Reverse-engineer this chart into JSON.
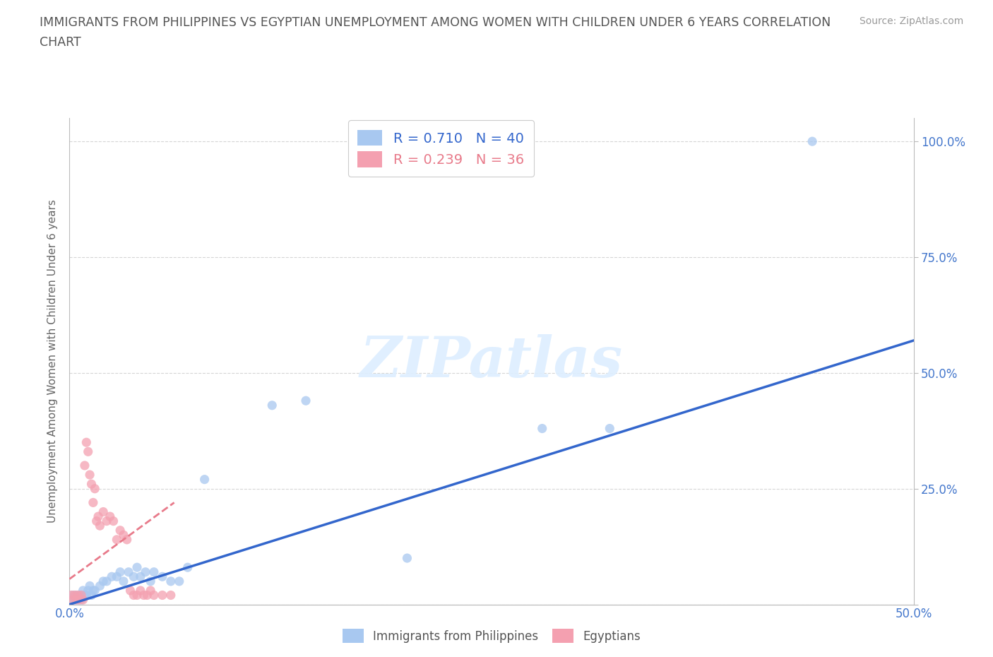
{
  "title_line1": "IMMIGRANTS FROM PHILIPPINES VS EGYPTIAN UNEMPLOYMENT AMONG WOMEN WITH CHILDREN UNDER 6 YEARS CORRELATION",
  "title_line2": "CHART",
  "source": "Source: ZipAtlas.com",
  "ylabel": "Unemployment Among Women with Children Under 6 years",
  "xlim": [
    0.0,
    0.5
  ],
  "ylim": [
    0.0,
    1.05
  ],
  "xticks": [
    0.0,
    0.1,
    0.2,
    0.3,
    0.4,
    0.5
  ],
  "xticklabels": [
    "0.0%",
    "",
    "",
    "",
    "",
    "50.0%"
  ],
  "ytick_positions": [
    0.0,
    0.25,
    0.5,
    0.75,
    1.0
  ],
  "ytick_labels_left": [
    "",
    "",
    "",
    "",
    ""
  ],
  "ytick_labels_right": [
    "",
    "25.0%",
    "50.0%",
    "75.0%",
    "100.0%"
  ],
  "blue_color": "#a8c8f0",
  "pink_color": "#f4a0b0",
  "blue_line_color": "#3366cc",
  "pink_line_color": "#e87a8a",
  "R_blue": 0.71,
  "N_blue": 40,
  "R_pink": 0.239,
  "N_pink": 36,
  "watermark": "ZIPatlas",
  "legend_label_blue": "Immigrants from Philippines",
  "legend_label_pink": "Egyptians",
  "background_color": "#ffffff",
  "grid_color": "#cccccc",
  "title_color": "#555555",
  "axis_tick_color": "#4477cc",
  "blue_scatter": [
    [
      0.001,
      0.01
    ],
    [
      0.002,
      0.02
    ],
    [
      0.003,
      0.01
    ],
    [
      0.004,
      0.02
    ],
    [
      0.005,
      0.01
    ],
    [
      0.006,
      0.02
    ],
    [
      0.007,
      0.01
    ],
    [
      0.008,
      0.03
    ],
    [
      0.009,
      0.02
    ],
    [
      0.01,
      0.02
    ],
    [
      0.011,
      0.03
    ],
    [
      0.012,
      0.04
    ],
    [
      0.013,
      0.02
    ],
    [
      0.014,
      0.03
    ],
    [
      0.015,
      0.03
    ],
    [
      0.018,
      0.04
    ],
    [
      0.02,
      0.05
    ],
    [
      0.022,
      0.05
    ],
    [
      0.025,
      0.06
    ],
    [
      0.028,
      0.06
    ],
    [
      0.03,
      0.07
    ],
    [
      0.032,
      0.05
    ],
    [
      0.035,
      0.07
    ],
    [
      0.038,
      0.06
    ],
    [
      0.04,
      0.08
    ],
    [
      0.042,
      0.06
    ],
    [
      0.045,
      0.07
    ],
    [
      0.048,
      0.05
    ],
    [
      0.05,
      0.07
    ],
    [
      0.055,
      0.06
    ],
    [
      0.06,
      0.05
    ],
    [
      0.065,
      0.05
    ],
    [
      0.07,
      0.08
    ],
    [
      0.08,
      0.27
    ],
    [
      0.12,
      0.43
    ],
    [
      0.14,
      0.44
    ],
    [
      0.2,
      0.1
    ],
    [
      0.28,
      0.38
    ],
    [
      0.32,
      0.38
    ],
    [
      0.44,
      1.0
    ]
  ],
  "pink_scatter": [
    [
      0.001,
      0.02
    ],
    [
      0.002,
      0.01
    ],
    [
      0.003,
      0.02
    ],
    [
      0.004,
      0.01
    ],
    [
      0.005,
      0.02
    ],
    [
      0.006,
      0.01
    ],
    [
      0.007,
      0.02
    ],
    [
      0.008,
      0.01
    ],
    [
      0.009,
      0.3
    ],
    [
      0.01,
      0.35
    ],
    [
      0.011,
      0.33
    ],
    [
      0.012,
      0.28
    ],
    [
      0.013,
      0.26
    ],
    [
      0.014,
      0.22
    ],
    [
      0.015,
      0.25
    ],
    [
      0.016,
      0.18
    ],
    [
      0.017,
      0.19
    ],
    [
      0.018,
      0.17
    ],
    [
      0.02,
      0.2
    ],
    [
      0.022,
      0.18
    ],
    [
      0.024,
      0.19
    ],
    [
      0.026,
      0.18
    ],
    [
      0.028,
      0.14
    ],
    [
      0.03,
      0.16
    ],
    [
      0.032,
      0.15
    ],
    [
      0.034,
      0.14
    ],
    [
      0.036,
      0.03
    ],
    [
      0.038,
      0.02
    ],
    [
      0.04,
      0.02
    ],
    [
      0.042,
      0.03
    ],
    [
      0.044,
      0.02
    ],
    [
      0.046,
      0.02
    ],
    [
      0.048,
      0.03
    ],
    [
      0.05,
      0.02
    ],
    [
      0.055,
      0.02
    ],
    [
      0.06,
      0.02
    ]
  ],
  "blue_line_x": [
    0.0,
    0.5
  ],
  "blue_line_y": [
    0.0,
    0.57
  ],
  "pink_line_x": [
    0.0,
    0.062
  ],
  "pink_line_y": [
    0.055,
    0.22
  ]
}
